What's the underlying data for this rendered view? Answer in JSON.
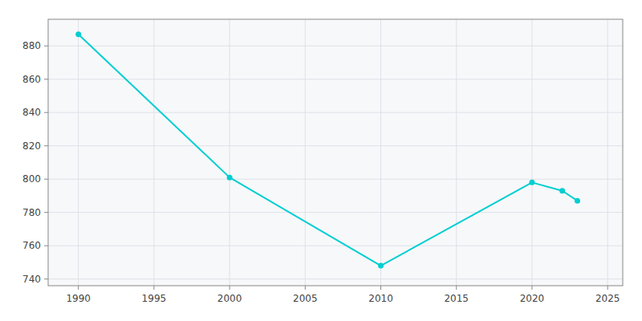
{
  "chart_data": {
    "type": "line",
    "x": [
      1990,
      2000,
      2010,
      2020,
      2022,
      2023
    ],
    "values": [
      887,
      801,
      748,
      798,
      793,
      787
    ],
    "color": "#00CED1",
    "marker": "circle",
    "xlim": [
      1988,
      2026
    ],
    "ylim": [
      736,
      896
    ],
    "xticks": [
      1990,
      1995,
      2000,
      2005,
      2010,
      2015,
      2020,
      2025
    ],
    "yticks": [
      740,
      760,
      780,
      800,
      820,
      840,
      860,
      880
    ],
    "grid": true
  }
}
